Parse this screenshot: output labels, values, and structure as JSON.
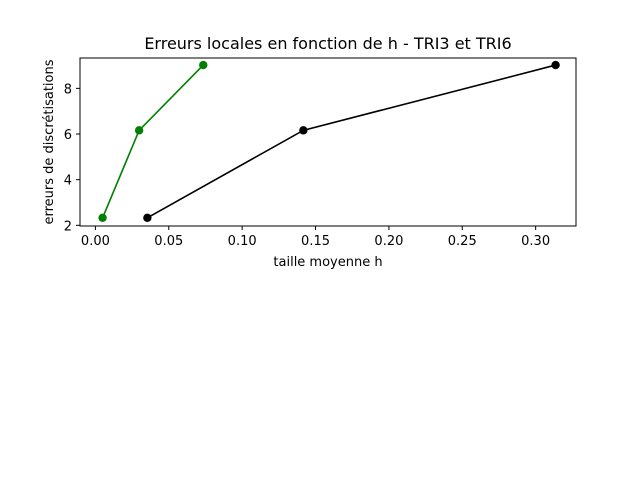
{
  "chart_data": {
    "type": "line",
    "title": "Erreurs locales en fonction de h - TRI3 et TRI6",
    "xlabel": "taille moyenne h",
    "ylabel": "erreurs de discrétisations",
    "xlim": [
      -0.0105,
      0.3275
    ],
    "ylim": [
      1.97,
      9.33
    ],
    "xticks": [
      0.0,
      0.05,
      0.1,
      0.15,
      0.2,
      0.25,
      0.3
    ],
    "xtick_labels": [
      "0.00",
      "0.05",
      "0.10",
      "0.15",
      "0.20",
      "0.25",
      "0.30"
    ],
    "yticks": [
      2,
      4,
      6,
      8
    ],
    "ytick_labels": [
      "2",
      "4",
      "6",
      "8"
    ],
    "grid": false,
    "series": [
      {
        "color": "#008000",
        "marker": "circle",
        "x": [
          0.0049,
          0.0298,
          0.0735
        ],
        "y": [
          2.33,
          6.16,
          9.02
        ]
      },
      {
        "color": "#000000",
        "marker": "circle",
        "x": [
          0.0354,
          0.1417,
          0.3136
        ],
        "y": [
          2.33,
          6.16,
          9.02
        ]
      }
    ]
  }
}
